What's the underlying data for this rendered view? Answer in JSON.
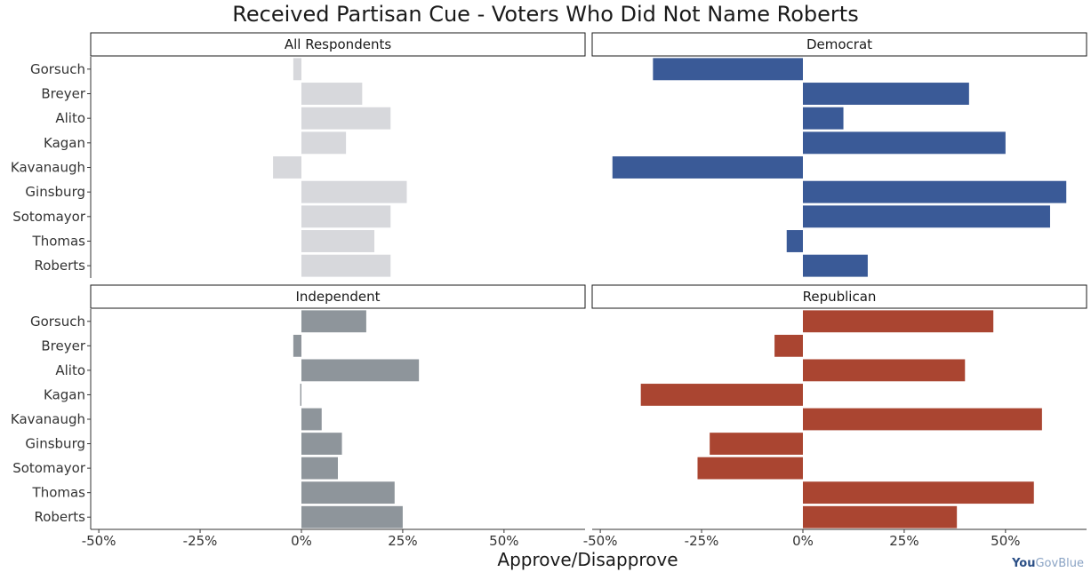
{
  "chart_data": {
    "type": "bar",
    "orientation": "horizontal",
    "title": "Received Partisan Cue - Voters Who Did Not Name Roberts",
    "xlabel": "Approve/Disapprove",
    "xlim": [
      -0.52,
      0.7
    ],
    "x_ticks": [
      -0.5,
      -0.25,
      0,
      0.25,
      0.5
    ],
    "x_tick_labels": [
      "-50%",
      "-25%",
      "0%",
      "25%",
      "50%"
    ],
    "categories": [
      "Gorsuch",
      "Breyer",
      "Alito",
      "Kagan",
      "Kavanaugh",
      "Ginsburg",
      "Sotomayor",
      "Thomas",
      "Roberts"
    ],
    "panels": [
      {
        "name": "All Respondents",
        "color": "#d7d8dc",
        "values": [
          -0.02,
          0.15,
          0.22,
          0.11,
          -0.07,
          0.26,
          0.22,
          0.18,
          0.22
        ]
      },
      {
        "name": "Democrat",
        "color": "#3a5a97",
        "values": [
          -0.37,
          0.41,
          0.1,
          0.5,
          -0.47,
          0.65,
          0.61,
          -0.04,
          0.16
        ]
      },
      {
        "name": "Independent",
        "color": "#8e959b",
        "values": [
          0.16,
          -0.02,
          0.29,
          -0.003,
          0.05,
          0.1,
          0.09,
          0.23,
          0.25
        ]
      },
      {
        "name": "Republican",
        "color": "#aa4531",
        "values": [
          0.47,
          -0.07,
          0.4,
          -0.4,
          0.59,
          -0.23,
          -0.26,
          0.57,
          0.38
        ]
      }
    ]
  },
  "branding": {
    "you": "You",
    "gov": "Gov",
    "blue": "Blue"
  }
}
